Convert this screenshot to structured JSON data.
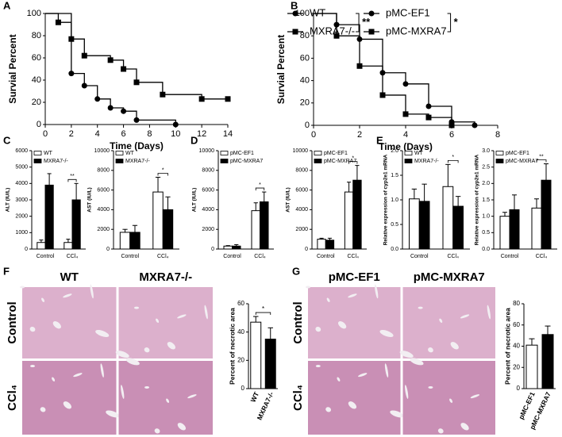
{
  "panel_labels": [
    "A",
    "B",
    "C",
    "D",
    "E",
    "F",
    "G"
  ],
  "micrographs": [
    {
      "columns": [
        "WT",
        "MXRA7-/-"
      ],
      "rows": [
        "Control",
        "CCl₄"
      ]
    },
    {
      "columns": [
        "pMC-EF1",
        "pMC-MXRA7"
      ],
      "rows": [
        "Control",
        "CCl₄"
      ]
    }
  ],
  "chart_data": [
    {
      "type": "step",
      "xlabel": "Time (Days)",
      "ylabel": "Survial Percent",
      "xlim": [
        0,
        14
      ],
      "xticks": [
        0,
        2,
        4,
        6,
        8,
        10,
        12,
        14
      ],
      "ylim": [
        0,
        100
      ],
      "yticks": [
        0,
        20,
        40,
        60,
        80,
        100
      ],
      "annotation": "**",
      "series": [
        {
          "name": "WT",
          "marker": "circle",
          "color": "#000000",
          "x": [
            0,
            2,
            3,
            4,
            5,
            6,
            7,
            10
          ],
          "values": [
            100,
            46,
            35,
            23,
            15,
            12,
            4,
            0
          ]
        },
        {
          "name": "MXRA7-/-",
          "marker": "square",
          "color": "#000000",
          "x": [
            0,
            1,
            2,
            3,
            5,
            6,
            7,
            9,
            12,
            14
          ],
          "values": [
            100,
            92,
            77,
            62,
            58,
            50,
            38,
            27,
            23,
            23
          ]
        }
      ]
    },
    {
      "type": "step",
      "xlabel": "Time (Days)",
      "ylabel": "Survial Percent",
      "xlim": [
        0,
        8
      ],
      "xticks": [
        0,
        2,
        4,
        6,
        8
      ],
      "ylim": [
        0,
        100
      ],
      "yticks": [
        0,
        20,
        40,
        60,
        80,
        100
      ],
      "annotation": "*",
      "series": [
        {
          "name": "pMC-EF1",
          "marker": "circle",
          "color": "#000000",
          "x": [
            0,
            1,
            2,
            3,
            4,
            5,
            6,
            7
          ],
          "values": [
            100,
            90,
            77,
            47,
            37,
            17,
            3,
            0
          ]
        },
        {
          "name": "pMC-MXRA7",
          "marker": "square",
          "color": "#000000",
          "x": [
            0,
            1,
            2,
            3,
            4,
            5,
            6
          ],
          "values": [
            100,
            80,
            53,
            27,
            10,
            7,
            0
          ]
        }
      ]
    },
    {
      "type": "bar",
      "ylabel": "ALT (IU/L)",
      "categories": [
        "Control",
        "CCl₄"
      ],
      "ylim": [
        0,
        6000
      ],
      "yticks": [
        0,
        1000,
        2000,
        3000,
        4000,
        5000,
        6000
      ],
      "annotation": "**",
      "series": [
        {
          "name": "WT",
          "color": "#ffffff",
          "values": [
            400,
            400
          ],
          "errors": [
            150,
            200
          ]
        },
        {
          "name": "MXRA7-/-",
          "color": "#000000",
          "values": [
            3900,
            3000
          ],
          "errors": [
            700,
            1000
          ]
        }
      ]
    },
    {
      "type": "bar",
      "ylabel": "AST (IU/L)",
      "categories": [
        "Control",
        "CCl₄"
      ],
      "ylim": [
        0,
        10000
      ],
      "yticks": [
        0,
        2000,
        4000,
        6000,
        8000,
        10000
      ],
      "annotation": "*",
      "series": [
        {
          "name": "WT",
          "color": "#ffffff",
          "values": [
            1700,
            5800
          ],
          "errors": [
            300,
            1500
          ]
        },
        {
          "name": "MXRA7-/-",
          "color": "#000000",
          "values": [
            1700,
            4000
          ],
          "errors": [
            700,
            1300
          ]
        }
      ]
    },
    {
      "type": "bar",
      "ylabel": "ALT (IU/L)",
      "categories": [
        "Control",
        "CCl₄"
      ],
      "ylim": [
        0,
        10000
      ],
      "yticks": [
        0,
        2000,
        4000,
        6000,
        8000,
        10000
      ],
      "annotation": "*",
      "series": [
        {
          "name": "pMC-EF1",
          "color": "#ffffff",
          "values": [
            300,
            3900
          ],
          "errors": [
            50,
            800
          ]
        },
        {
          "name": "pMC-MXRA7",
          "color": "#000000",
          "values": [
            300,
            4800
          ],
          "errors": [
            150,
            1000
          ]
        }
      ]
    },
    {
      "type": "bar",
      "ylabel": "AST (IU/L)",
      "categories": [
        "Control",
        "CCl₄"
      ],
      "ylim": [
        0,
        10000
      ],
      "yticks": [
        0,
        2000,
        4000,
        6000,
        8000,
        10000
      ],
      "annotation": "*",
      "series": [
        {
          "name": "pMC-EF1",
          "color": "#ffffff",
          "values": [
            1000,
            5800
          ],
          "errors": [
            100,
            1000
          ]
        },
        {
          "name": "pMC-MXRA7",
          "color": "#000000",
          "values": [
            900,
            7000
          ],
          "errors": [
            200,
            1500
          ]
        }
      ]
    },
    {
      "type": "bar",
      "ylabel": "Relative expression of cyp2e1 mRNA",
      "categories": [
        "Control",
        "CCl₄"
      ],
      "ylim": [
        0,
        2
      ],
      "yticks": [
        {
          "value": 0,
          "label": "0.0"
        },
        0.5,
        {
          "value": 1,
          "label": "1.0"
        },
        1.5,
        {
          "value": 2,
          "label": "2.0"
        }
      ],
      "annotation": "*",
      "series": [
        {
          "name": "WT",
          "color": "#ffffff",
          "values": [
            1.02,
            1.27
          ],
          "errors": [
            0.2,
            0.45
          ]
        },
        {
          "name": "MXRA7-/-",
          "color": "#000000",
          "values": [
            0.97,
            0.87
          ],
          "errors": [
            0.35,
            0.2
          ]
        }
      ]
    },
    {
      "type": "bar",
      "ylabel": "Relative expression of cyp2e1 mRNA",
      "categories": [
        "Control",
        "CCl₄"
      ],
      "ylim": [
        0,
        3
      ],
      "yticks": [
        {
          "value": 0,
          "label": "0.0"
        },
        0.5,
        {
          "value": 1,
          "label": "1.0"
        },
        1.5,
        {
          "value": 2,
          "label": "2.0"
        },
        2.5,
        {
          "value": 3,
          "label": "3.0"
        }
      ],
      "annotation": "**",
      "series": [
        {
          "name": "pMC-EF1",
          "color": "#ffffff",
          "values": [
            1.0,
            1.25
          ],
          "errors": [
            0.12,
            0.28
          ]
        },
        {
          "name": "pMC-MXRA7",
          "color": "#000000",
          "values": [
            1.2,
            2.1
          ],
          "errors": [
            0.45,
            0.5
          ]
        }
      ]
    },
    {
      "type": "bar",
      "ylabel": "Percent of necrotic area",
      "categories": [
        "WT",
        "MXRA7-/-"
      ],
      "ylim": [
        0,
        60
      ],
      "yticks": [
        0,
        20,
        40,
        60
      ],
      "annotation": "*",
      "values": [
        47,
        35
      ],
      "errors": [
        4,
        8
      ],
      "colors": [
        "#ffffff",
        "#000000"
      ]
    },
    {
      "type": "bar",
      "ylabel": "Percent of necrotic area",
      "categories": [
        "pMC-EF1",
        "pMC-MXRA7"
      ],
      "ylim": [
        0,
        80
      ],
      "yticks": [
        0,
        20,
        40,
        60,
        80
      ],
      "values": [
        41,
        51
      ],
      "errors": [
        6,
        8
      ],
      "colors": [
        "#ffffff",
        "#000000"
      ]
    }
  ]
}
